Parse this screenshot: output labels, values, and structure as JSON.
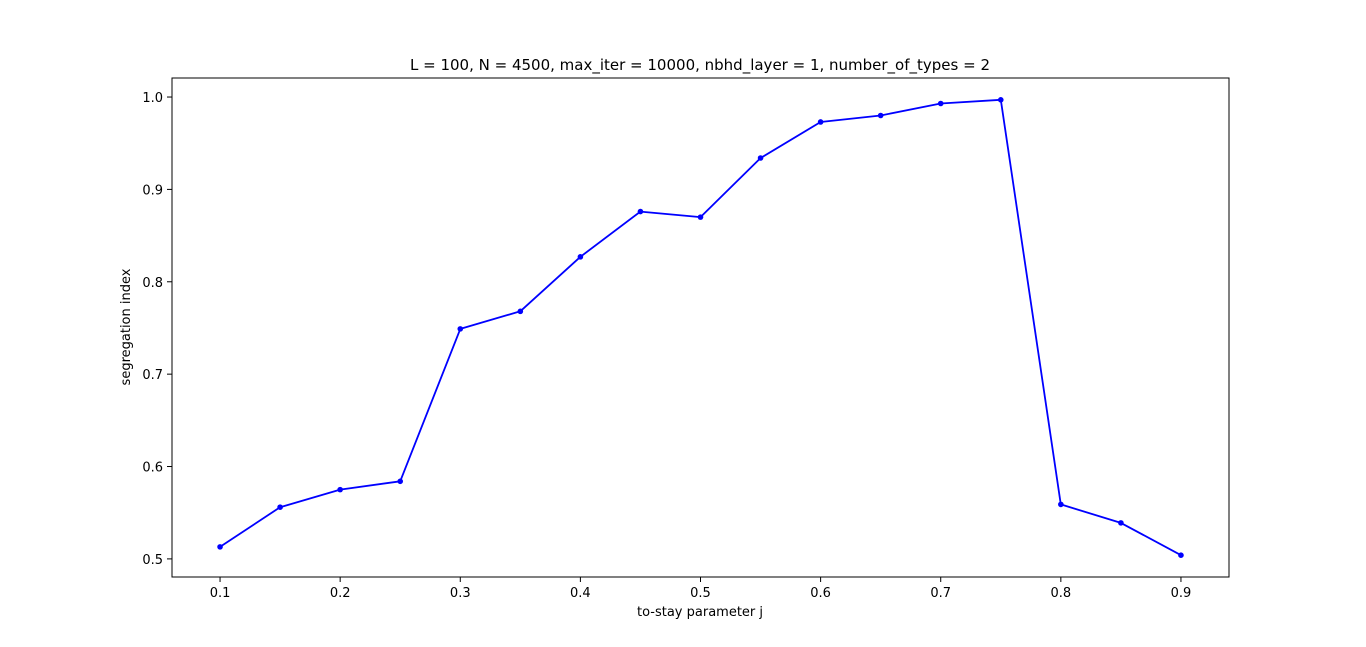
{
  "chart_data": {
    "type": "line",
    "title": "L = 100, N = 4500, max_iter = 10000, nbhd_layer = 1, number_of_types = 2",
    "xlabel": "to-stay parameter j",
    "ylabel": "segregation index",
    "xlim": [
      0.06,
      0.94
    ],
    "ylim": [
      0.4804,
      1.0206
    ],
    "xticks": [
      "0.1",
      "0.2",
      "0.3",
      "0.4",
      "0.5",
      "0.6",
      "0.7",
      "0.8",
      "0.9"
    ],
    "yticks": [
      "0.5",
      "0.6",
      "0.7",
      "0.8",
      "0.9",
      "1.0"
    ],
    "grid": false,
    "series": [
      {
        "color": "#0000ff",
        "marker": "dot",
        "x": [
          0.1,
          0.15,
          0.2,
          0.25,
          0.3,
          0.35,
          0.4,
          0.45,
          0.5,
          0.55,
          0.6,
          0.65,
          0.7,
          0.75,
          0.8,
          0.85,
          0.9
        ],
        "y": [
          0.513,
          0.556,
          0.575,
          0.584,
          0.749,
          0.768,
          0.827,
          0.876,
          0.87,
          0.934,
          0.973,
          0.98,
          0.993,
          0.997,
          0.559,
          0.539,
          0.504
        ]
      }
    ]
  }
}
